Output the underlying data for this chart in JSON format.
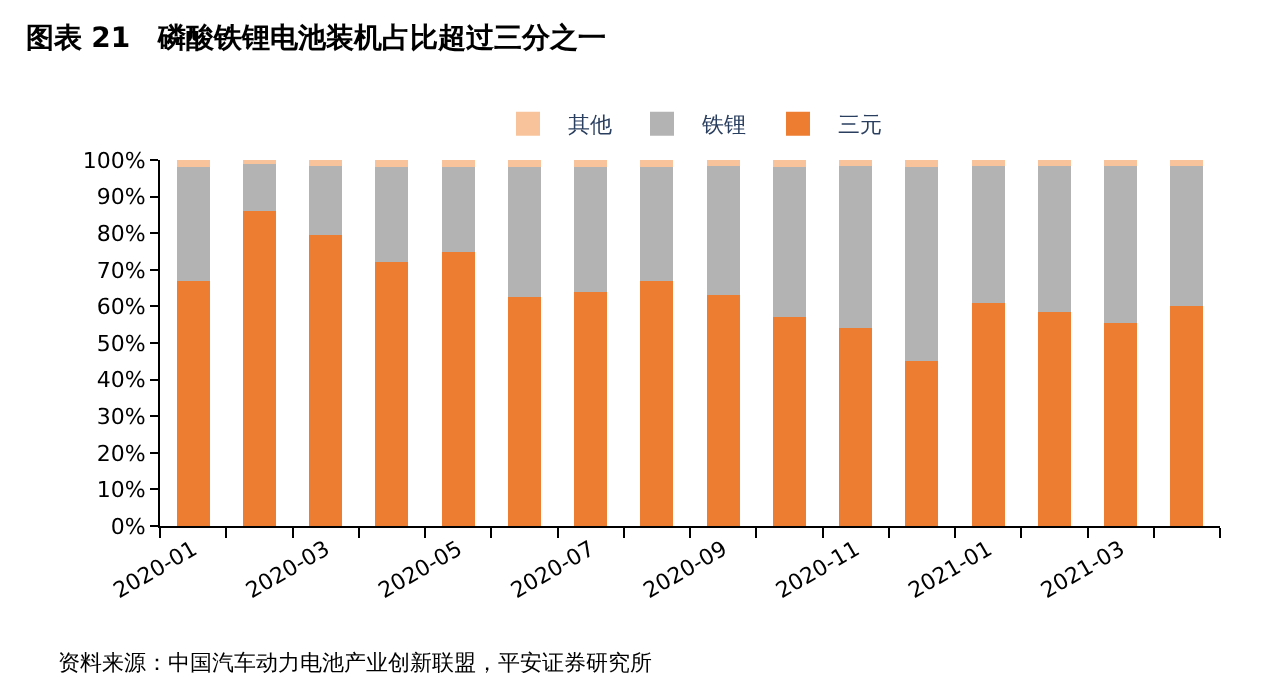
{
  "chart_data": {
    "type": "bar",
    "stacked": true,
    "title": "图表 21　磷酸铁锂电池装机占比超过三分之一",
    "categories": [
      "2020-01",
      null,
      "2020-03",
      null,
      "2020-05",
      null,
      "2020-07",
      null,
      "2020-09",
      null,
      "2020-11",
      null,
      "2021-01",
      null,
      "2021-03",
      null
    ],
    "series": [
      {
        "name": "三元",
        "color": "#ed7d31",
        "values": [
          67,
          86,
          79.5,
          72,
          75,
          62.5,
          64,
          67,
          63,
          57,
          54,
          45,
          61,
          58.5,
          55.5,
          60
        ]
      },
      {
        "name": "铁锂",
        "color": "#b3b3b3",
        "values": [
          31,
          13,
          19,
          26,
          23,
          35.5,
          34,
          31,
          35.5,
          41,
          44.5,
          53,
          37.5,
          40,
          43,
          38.5
        ]
      },
      {
        "name": "其他",
        "color": "#f8c39b",
        "values": [
          2,
          1,
          1.5,
          2,
          2,
          2,
          2,
          2,
          1.5,
          2,
          1.5,
          2,
          1.5,
          1.5,
          1.5,
          1.5
        ]
      }
    ],
    "ylim": [
      0,
      100
    ],
    "yticks": [
      {
        "value": 0,
        "label": "0%"
      },
      {
        "value": 10,
        "label": "10%"
      },
      {
        "value": 20,
        "label": "20%"
      },
      {
        "value": 30,
        "label": "30%"
      },
      {
        "value": 40,
        "label": "40%"
      },
      {
        "value": 50,
        "label": "50%"
      },
      {
        "value": 60,
        "label": "60%"
      },
      {
        "value": 70,
        "label": "70%"
      },
      {
        "value": 80,
        "label": "80%"
      },
      {
        "value": 90,
        "label": "90%"
      },
      {
        "value": 100,
        "label": "100%"
      }
    ],
    "legend": "top",
    "annotations": [
      "资料来源：中国汽车动力电池产业创新联盟，平安证券研究所"
    ]
  }
}
